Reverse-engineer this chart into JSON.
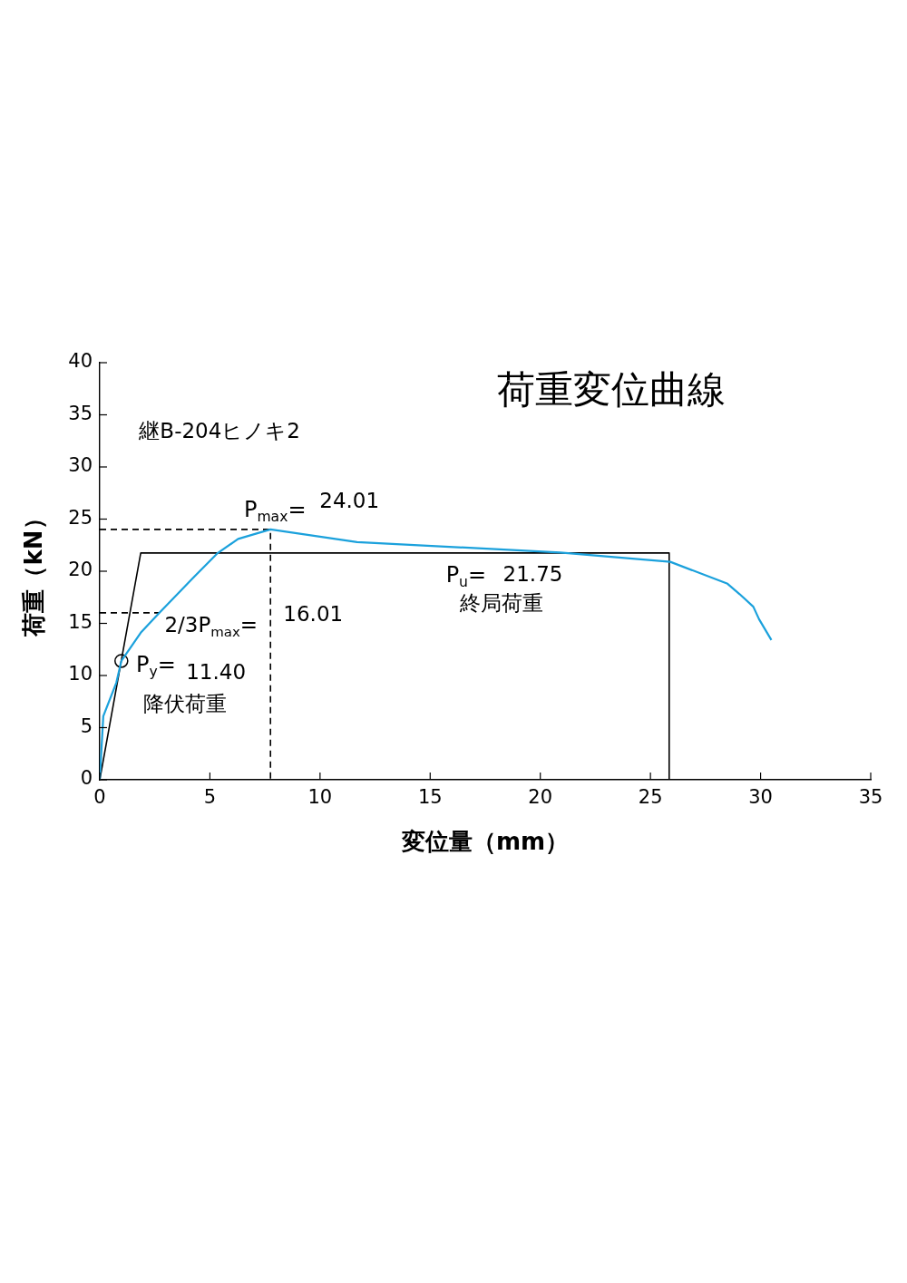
{
  "chart_data": {
    "type": "line",
    "title": "荷重変位曲線",
    "xlabel": "変位量（mm）",
    "ylabel": "荷重（kN）",
    "xlim": [
      0,
      35
    ],
    "xticks": [
      0,
      5,
      10,
      15,
      20,
      25,
      30,
      35
    ],
    "ylim": [
      0,
      40
    ],
    "yticks": [
      0,
      5,
      10,
      15,
      20,
      25,
      30,
      35,
      40
    ],
    "grid": false,
    "legend": false,
    "series": [
      {
        "color": "#1ba1dc",
        "marker": "none",
        "line_style": "solid",
        "x": [
          0,
          0.16,
          0.75,
          0.98,
          1.86,
          2.7,
          4.25,
          5.33,
          6.28,
          7.75,
          11.68,
          20.9,
          25.9,
          28.5,
          29.05,
          29.67,
          29.93,
          30.49
        ],
        "values": [
          0,
          6.1,
          9.3,
          11.4,
          14.1,
          16.0,
          19.4,
          21.7,
          23.1,
          24.01,
          22.8,
          21.8,
          20.9,
          18.8,
          17.8,
          16.6,
          15.4,
          13.4
        ]
      },
      {
        "color": "#000000",
        "marker": "none",
        "line_style": "solid",
        "x": [
          0,
          1.86,
          25.85,
          25.85
        ],
        "values": [
          0,
          21.75,
          21.75,
          0
        ]
      },
      {
        "color": "#000000",
        "marker": "none",
        "line_style": "dashed",
        "x": [
          0,
          7.75,
          7.75
        ],
        "values": [
          24.01,
          24.01,
          0
        ]
      },
      {
        "color": "#000000",
        "marker": "none",
        "line_style": "dashed",
        "x": [
          0,
          2.7
        ],
        "values": [
          16.01,
          16.01
        ]
      },
      {
        "type": "scatter",
        "color": "#000000",
        "marker": "circle",
        "x": [
          0.98
        ],
        "values": [
          11.4
        ]
      }
    ],
    "annotations": [
      "継B-204ヒノキ2",
      "P$_{max}$=",
      "24.01",
      "2/3P$_{max}$=",
      "16.01",
      "P$_{y}$=",
      "11.40",
      "降伏荷重",
      "P$_{u}$=",
      "21.75",
      "終局荷重"
    ]
  }
}
